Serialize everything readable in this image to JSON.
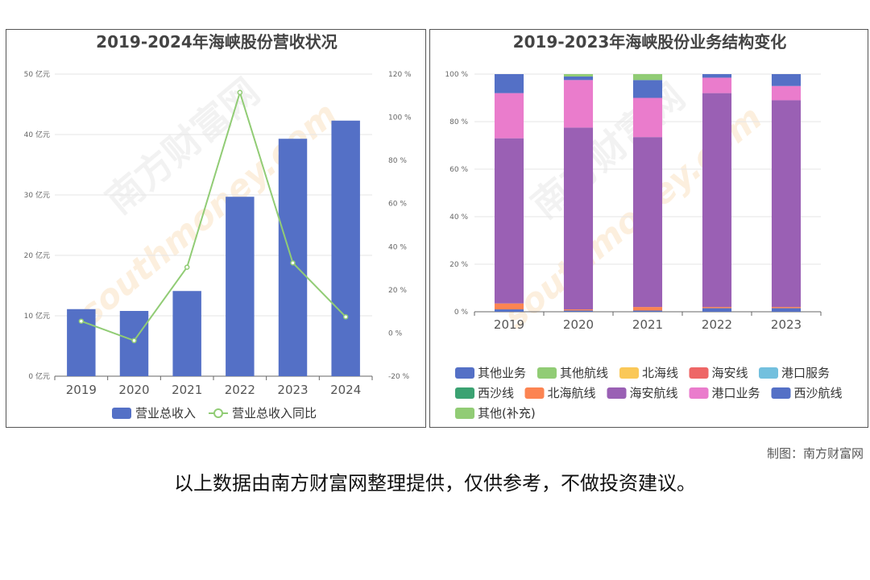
{
  "credit": "制图：南方财富网",
  "disclaimer": "以上数据由南方财富网整理提供，仅供参考，不做投资建议。",
  "watermark": {
    "cn": "南方财富网",
    "en": "southmoney.com"
  },
  "chart_data": [
    {
      "type": "bar",
      "title": "2019-2024年海峡股份营收状况",
      "categories": [
        "2019",
        "2020",
        "2021",
        "2022",
        "2023",
        "2024"
      ],
      "series": [
        {
          "name": "营业总收入",
          "type": "bar",
          "axis": "left",
          "color": "#5470c6",
          "values": [
            11.1,
            10.8,
            14.1,
            29.7,
            39.3,
            42.3
          ]
        },
        {
          "name": "营业总收入同比",
          "type": "line",
          "axis": "right",
          "color": "#91cc75",
          "values": [
            5.5,
            -3.5,
            30.5,
            111.5,
            32.5,
            7.5
          ]
        }
      ],
      "y_left": {
        "min": 0,
        "max": 50,
        "step": 10,
        "unit": "亿元"
      },
      "y_right": {
        "min": -20,
        "max": 120,
        "step": 20,
        "unit": "%"
      },
      "legend_position": "bottom"
    },
    {
      "type": "bar",
      "stacked": true,
      "title": "2019-2023年海峡股份业务结构变化",
      "categories": [
        "2019",
        "2020",
        "2021",
        "2022",
        "2023"
      ],
      "y": {
        "min": 0,
        "max": 100,
        "step": 20,
        "unit": "%"
      },
      "series": [
        {
          "name": "西沙航线",
          "color": "#5470c6",
          "values": [
            1.0,
            0.5,
            0.5,
            1.5,
            1.5
          ]
        },
        {
          "name": "北海航线",
          "color": "#fc8452",
          "values": [
            2.5,
            0.5,
            1.5,
            0.5,
            0.5
          ]
        },
        {
          "name": "海安航线",
          "color": "#9a60b4",
          "values": [
            69.5,
            76.5,
            71.5,
            90.0,
            87.0
          ]
        },
        {
          "name": "港口业务",
          "color": "#ea7ccc",
          "values": [
            19.0,
            20.0,
            16.5,
            6.5,
            6.0
          ]
        },
        {
          "name": "其他业务",
          "color": "#5470c6",
          "values": [
            8.0,
            1.5,
            7.5,
            1.5,
            5.0
          ]
        },
        {
          "name": "其他航线",
          "color": "#91cc75",
          "values": [
            0.0,
            1.0,
            2.5,
            0.0,
            0.0
          ]
        },
        {
          "name": "北海线",
          "color": "#fac858",
          "values": [
            0,
            0,
            0,
            0,
            0
          ]
        },
        {
          "name": "海安线",
          "color": "#ee6666",
          "values": [
            0,
            0,
            0,
            0,
            0
          ]
        },
        {
          "name": "港口服务",
          "color": "#73c0de",
          "values": [
            0,
            0,
            0,
            0,
            0
          ]
        },
        {
          "name": "西沙线",
          "color": "#3ba272",
          "values": [
            0,
            0,
            0,
            0,
            0
          ]
        },
        {
          "name": "其他(补充)",
          "color": "#91cc75",
          "values": [
            0,
            0,
            0,
            0,
            0
          ]
        }
      ],
      "legend_order": [
        "其他业务",
        "其他航线",
        "北海线",
        "海安线",
        "港口服务",
        "西沙线",
        "北海航线",
        "海安航线",
        "港口业务",
        "西沙航线",
        "其他(补充)"
      ],
      "legend_position": "bottom"
    }
  ]
}
